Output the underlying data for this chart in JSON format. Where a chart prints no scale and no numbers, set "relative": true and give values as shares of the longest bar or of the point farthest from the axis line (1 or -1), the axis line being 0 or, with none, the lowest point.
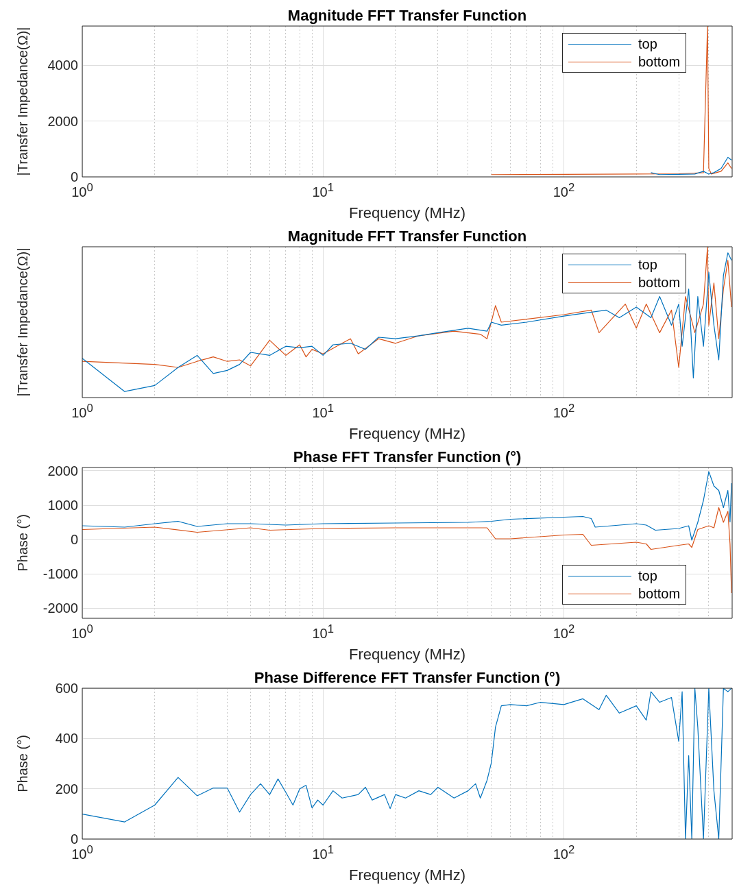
{
  "chart_data": [
    {
      "type": "line",
      "title": "Magnitude FFT Transfer Function",
      "xlabel": "Frequency (MHz)",
      "ylabel": "|Transfer Impedance(Ω)|",
      "log": "x",
      "grid": true,
      "legend": "top right",
      "xlim": [
        1,
        500
      ],
      "ylim": [
        0,
        5400
      ],
      "yticks": [
        0,
        2000,
        4000
      ],
      "xticks": [
        {
          "value": 1,
          "label": "10$^{0}$"
        },
        {
          "value": 2,
          "label": null
        },
        {
          "value": 3,
          "label": null
        },
        {
          "value": 4,
          "label": null
        },
        {
          "value": 5,
          "label": null
        },
        {
          "value": 6,
          "label": null
        },
        {
          "value": 7,
          "label": null
        },
        {
          "value": 8,
          "label": null
        },
        {
          "value": 9,
          "label": null
        },
        {
          "value": 10,
          "label": "10$^{1}$"
        },
        {
          "value": 20,
          "label": null
        },
        {
          "value": 30,
          "label": null
        },
        {
          "value": 40,
          "label": null
        },
        {
          "value": 50,
          "label": null
        },
        {
          "value": 60,
          "label": null
        },
        {
          "value": 70,
          "label": null
        },
        {
          "value": 80,
          "label": null
        },
        {
          "value": 90,
          "label": null
        },
        {
          "value": 100,
          "label": "10$^{2}$"
        },
        {
          "value": 200,
          "label": null
        },
        {
          "value": 300,
          "label": null
        },
        {
          "value": 400,
          "label": null
        }
      ],
      "series": [
        {
          "name": "top",
          "color": "#0072bd",
          "x": [
            230,
            250,
            300,
            350,
            380,
            400,
            420,
            450,
            480,
            497
          ],
          "values": [
            150,
            80,
            90,
            100,
            200,
            100,
            150,
            300,
            700,
            600
          ]
        },
        {
          "name": "bottom",
          "color": "#d95319",
          "x": [
            50,
            100,
            200,
            300,
            380,
            395,
            400,
            410,
            450,
            480,
            497
          ],
          "values": [
            80,
            90,
            100,
            110,
            150,
            5400,
            300,
            100,
            200,
            500,
            300
          ]
        }
      ]
    },
    {
      "type": "line",
      "title": "Magnitude FFT Transfer Function",
      "xlabel": "Frequency (MHz)",
      "ylabel": "|Transfer Impedance(Ω)|",
      "log": "x",
      "grid": true,
      "legend": "top right",
      "relative": true,
      "xlim": [
        1,
        500
      ],
      "xticks": [
        {
          "value": 1,
          "label": "10$^{0}$"
        },
        {
          "value": 2,
          "label": null
        },
        {
          "value": 3,
          "label": null
        },
        {
          "value": 4,
          "label": null
        },
        {
          "value": 5,
          "label": null
        },
        {
          "value": 6,
          "label": null
        },
        {
          "value": 7,
          "label": null
        },
        {
          "value": 8,
          "label": null
        },
        {
          "value": 9,
          "label": null
        },
        {
          "value": 10,
          "label": "10$^{1}$"
        },
        {
          "value": 20,
          "label": null
        },
        {
          "value": 30,
          "label": null
        },
        {
          "value": 40,
          "label": null
        },
        {
          "value": 50,
          "label": null
        },
        {
          "value": 60,
          "label": null
        },
        {
          "value": 70,
          "label": null
        },
        {
          "value": 80,
          "label": null
        },
        {
          "value": 90,
          "label": null
        },
        {
          "value": 100,
          "label": "10$^{2}$"
        },
        {
          "value": 200,
          "label": null
        },
        {
          "value": 300,
          "label": null
        },
        {
          "value": 400,
          "label": null
        }
      ],
      "series": [
        {
          "name": "top",
          "color": "#0072bd",
          "x": [
            1,
            1.5,
            2,
            2.5,
            3,
            3.5,
            4,
            4.5,
            5,
            6,
            7,
            8,
            9,
            10,
            11,
            13,
            15,
            17,
            20,
            25,
            30,
            40,
            48,
            50,
            55,
            70,
            100,
            150,
            170,
            200,
            230,
            250,
            280,
            300,
            310,
            330,
            345,
            360,
            380,
            400,
            420,
            440,
            460,
            480,
            497
          ],
          "values": [
            0.26,
            0.04,
            0.08,
            0.2,
            0.28,
            0.16,
            0.18,
            0.22,
            0.3,
            0.28,
            0.34,
            0.33,
            0.34,
            0.28,
            0.35,
            0.36,
            0.32,
            0.4,
            0.39,
            0.41,
            0.43,
            0.46,
            0.44,
            0.5,
            0.48,
            0.5,
            0.54,
            0.58,
            0.53,
            0.6,
            0.53,
            0.67,
            0.48,
            0.62,
            0.34,
            0.72,
            0.13,
            0.67,
            0.34,
            0.83,
            0.48,
            0.25,
            0.81,
            0.96,
            0.91
          ]
        },
        {
          "name": "bottom",
          "color": "#d95319",
          "x": [
            1,
            2,
            2.5,
            3,
            3.5,
            4,
            4.5,
            5,
            6,
            7,
            8,
            8.5,
            9,
            10,
            12,
            13,
            14,
            17,
            20,
            25,
            35,
            45,
            48,
            52,
            55,
            70,
            100,
            130,
            140,
            180,
            200,
            220,
            250,
            280,
            300,
            320,
            350,
            380,
            395,
            400,
            420,
            440,
            460,
            480,
            497
          ],
          "values": [
            0.24,
            0.22,
            0.2,
            0.24,
            0.27,
            0.24,
            0.25,
            0.21,
            0.38,
            0.28,
            0.35,
            0.27,
            0.32,
            0.29,
            0.36,
            0.39,
            0.29,
            0.39,
            0.36,
            0.41,
            0.44,
            0.42,
            0.39,
            0.61,
            0.5,
            0.52,
            0.55,
            0.58,
            0.43,
            0.62,
            0.46,
            0.62,
            0.43,
            0.58,
            0.2,
            0.67,
            0.43,
            0.62,
            1,
            0.48,
            0.76,
            0.39,
            0.72,
            0.91,
            0.6
          ]
        }
      ]
    },
    {
      "type": "line",
      "title": "Phase FFT Transfer Function (°)",
      "xlabel": "Frequency (MHz)",
      "ylabel": "Phase (°)",
      "log": "x",
      "grid": true,
      "legend": "bottom right",
      "xlim": [
        1,
        500
      ],
      "ylim": [
        -2300,
        2100
      ],
      "yticks": [
        -2000,
        -1000,
        0,
        1000,
        2000
      ],
      "xticks": [
        {
          "value": 1,
          "label": "10$^{0}$"
        },
        {
          "value": 2,
          "label": null
        },
        {
          "value": 3,
          "label": null
        },
        {
          "value": 4,
          "label": null
        },
        {
          "value": 5,
          "label": null
        },
        {
          "value": 6,
          "label": null
        },
        {
          "value": 7,
          "label": null
        },
        {
          "value": 8,
          "label": null
        },
        {
          "value": 9,
          "label": null
        },
        {
          "value": 10,
          "label": "10$^{1}$"
        },
        {
          "value": 20,
          "label": null
        },
        {
          "value": 30,
          "label": null
        },
        {
          "value": 40,
          "label": null
        },
        {
          "value": 50,
          "label": null
        },
        {
          "value": 60,
          "label": null
        },
        {
          "value": 70,
          "label": null
        },
        {
          "value": 80,
          "label": null
        },
        {
          "value": 90,
          "label": null
        },
        {
          "value": 100,
          "label": "10$^{2}$"
        },
        {
          "value": 200,
          "label": null
        },
        {
          "value": 300,
          "label": null
        },
        {
          "value": 400,
          "label": null
        }
      ],
      "series": [
        {
          "name": "top",
          "color": "#0072bd",
          "x": [
            1,
            1.5,
            2,
            2.5,
            3,
            4,
            5,
            7,
            10,
            20,
            40,
            50,
            60,
            100,
            120,
            130,
            135,
            200,
            220,
            240,
            300,
            330,
            340,
            360,
            380,
            400,
            420,
            440,
            460,
            480,
            490,
            497
          ],
          "values": [
            400,
            360,
            460,
            530,
            380,
            460,
            460,
            420,
            460,
            480,
            500,
            530,
            590,
            650,
            670,
            610,
            360,
            460,
            420,
            270,
            320,
            400,
            -20,
            500,
            1140,
            1980,
            1560,
            1430,
            930,
            1430,
            510,
            1640
          ]
        },
        {
          "name": "bottom",
          "color": "#d95319",
          "x": [
            1,
            2,
            3,
            5,
            6,
            10,
            20,
            48,
            52,
            60,
            100,
            120,
            130,
            200,
            220,
            230,
            300,
            330,
            340,
            360,
            400,
            420,
            440,
            460,
            480,
            490,
            497
          ],
          "values": [
            290,
            360,
            210,
            340,
            270,
            320,
            340,
            340,
            20,
            20,
            130,
            150,
            -170,
            -80,
            -130,
            -290,
            -170,
            -130,
            -230,
            290,
            400,
            340,
            930,
            500,
            820,
            -130,
            -1560
          ]
        }
      ]
    },
    {
      "type": "line",
      "title": "Phase Difference FFT Transfer Function (°)",
      "xlabel": "Frequency (MHz)",
      "ylabel": "Phase (°)",
      "log": "x",
      "grid": true,
      "xlim": [
        1,
        500
      ],
      "ylim": [
        0,
        600
      ],
      "yticks": [
        0,
        200,
        400,
        600
      ],
      "xticks": [
        {
          "value": 1,
          "label": "10$^{0}$"
        },
        {
          "value": 2,
          "label": null
        },
        {
          "value": 3,
          "label": null
        },
        {
          "value": 4,
          "label": null
        },
        {
          "value": 5,
          "label": null
        },
        {
          "value": 6,
          "label": null
        },
        {
          "value": 7,
          "label": null
        },
        {
          "value": 8,
          "label": null
        },
        {
          "value": 9,
          "label": null
        },
        {
          "value": 10,
          "label": "10$^{1}$"
        },
        {
          "value": 20,
          "label": null
        },
        {
          "value": 30,
          "label": null
        },
        {
          "value": 40,
          "label": null
        },
        {
          "value": 50,
          "label": null
        },
        {
          "value": 60,
          "label": null
        },
        {
          "value": 70,
          "label": null
        },
        {
          "value": 80,
          "label": null
        },
        {
          "value": 90,
          "label": null
        },
        {
          "value": 100,
          "label": "10$^{2}$"
        },
        {
          "value": 200,
          "label": null
        },
        {
          "value": 300,
          "label": null
        },
        {
          "value": 400,
          "label": null
        }
      ],
      "series": [
        {
          "color": "#0072bd",
          "x": [
            1,
            1.5,
            2,
            2.5,
            3,
            3.5,
            4,
            4.5,
            5,
            5.5,
            6,
            6.5,
            7,
            7.5,
            8,
            8.5,
            9,
            9.5,
            10,
            11,
            12,
            14,
            15,
            16,
            18,
            19,
            20,
            22,
            25,
            28,
            30,
            35,
            40,
            43,
            45,
            48,
            50,
            52,
            55,
            60,
            70,
            80,
            100,
            120,
            140,
            150,
            170,
            200,
            220,
            230,
            250,
            280,
            300,
            310,
            320,
            330,
            340,
            350,
            360,
            380,
            400,
            420,
            440,
            460,
            480,
            497
          ],
          "values": [
            99,
            68,
            135,
            245,
            172,
            203,
            203,
            107,
            177,
            220,
            177,
            239,
            186,
            135,
            200,
            214,
            124,
            155,
            135,
            192,
            163,
            177,
            206,
            155,
            177,
            121,
            177,
            163,
            192,
            177,
            206,
            163,
            192,
            220,
            163,
            234,
            304,
            445,
            530,
            535,
            530,
            544,
            535,
            558,
            515,
            572,
            501,
            530,
            473,
            586,
            544,
            563,
            389,
            586,
            0,
            332,
            0,
            600,
            445,
            0,
            600,
            192,
            0,
            600,
            586,
            600
          ]
        }
      ]
    }
  ]
}
